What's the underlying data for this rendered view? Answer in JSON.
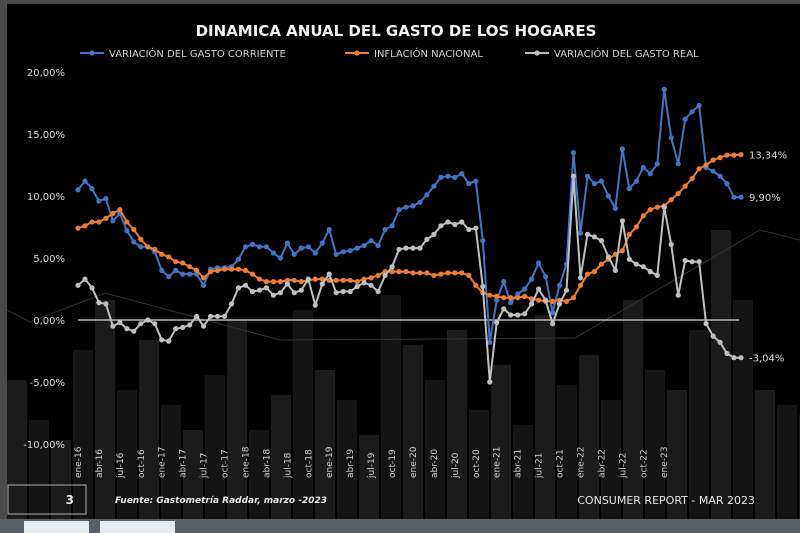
{
  "chart_data": {
    "type": "line",
    "title": "DINAMICA ANUAL DEL GASTO DE LOS HOGARES",
    "xlabel": "",
    "ylabel": "",
    "ylim": [
      -10,
      20
    ],
    "y_ticks": [
      "20,00%",
      "15,00%",
      "10,00%",
      "5,00%",
      "0,00%",
      "-5,00%",
      "-10,00%"
    ],
    "y_tick_values": [
      20,
      15,
      10,
      5,
      0,
      -5,
      -10
    ],
    "grid": false,
    "legend_position": "top",
    "x_start": "ene-16",
    "x_end": "mar-23",
    "x_tick_labels": [
      "ene-16",
      "abr-16",
      "jul-16",
      "oct-16",
      "ene-17",
      "abr-17",
      "jul-17",
      "oct-17",
      "ene-18",
      "abr-18",
      "jul-18",
      "oct-18",
      "ene-19",
      "abr-19",
      "jul-19",
      "oct-19",
      "ene-20",
      "abr-20",
      "jul-20",
      "oct-20",
      "ene-21",
      "abr-21",
      "jul-21",
      "oct-21",
      "ene-22",
      "abr-22",
      "jul-22",
      "oct-22",
      "ene-23"
    ],
    "series": [
      {
        "name": "VARIACIÓN DEL GASTO CORRIENTE",
        "color": "#4472c4",
        "end_label": "9,90%",
        "values": [
          10.5,
          11.2,
          10.6,
          9.6,
          9.8,
          8.0,
          8.6,
          7.2,
          6.3,
          5.9,
          5.9,
          5.5,
          4.0,
          3.5,
          4.0,
          3.7,
          3.7,
          3.7,
          2.8,
          4.1,
          4.2,
          4.2,
          4.3,
          4.9,
          5.9,
          6.1,
          5.9,
          5.9,
          5.4,
          5.0,
          6.2,
          5.3,
          5.8,
          5.9,
          5.4,
          6.2,
          7.3,
          5.3,
          5.5,
          5.6,
          5.8,
          6.0,
          6.4,
          6.0,
          7.3,
          7.6,
          8.9,
          9.1,
          9.2,
          9.5,
          10.1,
          10.8,
          11.5,
          11.6,
          11.5,
          11.8,
          11.0,
          11.2,
          6.4,
          -1.8,
          1.6,
          3.1,
          1.4,
          2.1,
          2.5,
          3.3,
          4.6,
          3.5,
          0.6,
          2.8,
          4.5,
          13.5,
          7.0,
          11.6,
          11.0,
          11.2,
          10.0,
          9.0,
          13.8,
          10.6,
          11.2,
          12.3,
          11.8,
          12.6,
          18.6,
          14.7,
          12.6,
          16.2,
          16.8,
          17.3,
          12.3,
          12.0,
          11.6,
          11.0,
          9.9,
          9.9
        ]
      },
      {
        "name": "INFLACIÓN NACIONAL",
        "color": "#ed7d31",
        "end_label": "13,34%",
        "values": [
          7.4,
          7.6,
          7.9,
          7.9,
          8.2,
          8.6,
          8.9,
          7.9,
          7.3,
          6.5,
          5.9,
          5.7,
          5.3,
          5.1,
          4.7,
          4.6,
          4.3,
          4.0,
          3.4,
          3.9,
          4.0,
          4.1,
          4.1,
          4.1,
          4.0,
          3.7,
          3.3,
          3.1,
          3.1,
          3.1,
          3.2,
          3.2,
          3.1,
          3.2,
          3.3,
          3.3,
          3.2,
          3.2,
          3.2,
          3.2,
          3.1,
          3.3,
          3.4,
          3.6,
          3.9,
          3.9,
          3.9,
          3.9,
          3.8,
          3.8,
          3.8,
          3.6,
          3.7,
          3.8,
          3.8,
          3.8,
          3.6,
          2.8,
          2.2,
          2.0,
          1.9,
          1.8,
          1.8,
          1.8,
          1.9,
          1.7,
          1.6,
          1.5,
          1.5,
          1.6,
          1.5,
          1.8,
          2.8,
          3.7,
          3.9,
          4.5,
          4.9,
          5.3,
          5.6,
          6.9,
          7.5,
          8.4,
          8.9,
          9.1,
          9.2,
          9.7,
          10.2,
          10.8,
          11.4,
          12.2,
          12.5,
          12.9,
          13.1,
          13.3,
          13.3,
          13.34
        ]
      },
      {
        "name": "VARIACIÓN DEL GASTO REAL",
        "color": "#bfbfbf",
        "end_label": "-3,04%",
        "values": [
          2.8,
          3.3,
          2.6,
          1.4,
          1.3,
          -0.5,
          -0.2,
          -0.7,
          -0.9,
          -0.3,
          0.0,
          -0.3,
          -1.6,
          -1.7,
          -0.7,
          -0.6,
          -0.4,
          0.3,
          -0.5,
          0.3,
          0.3,
          0.3,
          1.3,
          2.6,
          2.8,
          2.3,
          2.4,
          2.6,
          2.0,
          2.2,
          2.9,
          2.2,
          2.4,
          3.3,
          1.2,
          2.9,
          3.7,
          2.2,
          2.3,
          2.3,
          2.7,
          3.0,
          2.8,
          2.3,
          3.6,
          4.3,
          5.7,
          5.8,
          5.8,
          5.8,
          6.5,
          6.9,
          7.6,
          7.9,
          7.7,
          7.9,
          7.3,
          7.4,
          2.7,
          -5.0,
          -0.2,
          0.9,
          0.4,
          0.4,
          0.5,
          1.3,
          2.5,
          1.6,
          -0.3,
          1.3,
          2.4,
          11.6,
          3.4,
          6.9,
          6.7,
          6.4,
          5.1,
          4.0,
          8.0,
          4.9,
          4.5,
          4.3,
          3.9,
          3.6,
          9.1,
          6.1,
          2.0,
          4.8,
          4.7,
          4.7,
          -0.3,
          -1.3,
          -1.8,
          -2.7,
          -3.04,
          -3.04
        ]
      }
    ]
  },
  "footer": {
    "page_number": "3",
    "source": "Fuente: Gastometría Raddar, marzo -2023",
    "report": "CONSUMER REPORT - MAR 2023"
  }
}
